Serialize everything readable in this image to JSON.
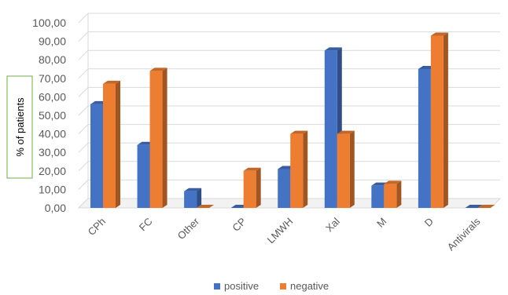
{
  "chart_data": {
    "type": "bar",
    "title": "",
    "xlabel": "",
    "ylabel": "% of patients",
    "categories": [
      "CPh",
      "FC",
      "Other",
      "CP",
      "LMWH",
      "Xal",
      "M",
      "D",
      "Antivirals"
    ],
    "series": [
      {
        "name": "positive",
        "color": "#4472C4",
        "values": [
          56,
          34,
          9,
          0,
          21,
          85,
          12,
          75,
          0
        ]
      },
      {
        "name": "negative",
        "color": "#ED7D31",
        "values": [
          67,
          74,
          0,
          20,
          40,
          40,
          13,
          93,
          0
        ]
      }
    ],
    "ylim": [
      0,
      100
    ],
    "yticks": [
      "0,00",
      "10,00",
      "20,00",
      "30,00",
      "40,00",
      "50,00",
      "60,00",
      "70,00",
      "80,00",
      "90,00",
      "100,00"
    ],
    "grid": true,
    "style": "3d-column",
    "legend_position": "bottom"
  }
}
